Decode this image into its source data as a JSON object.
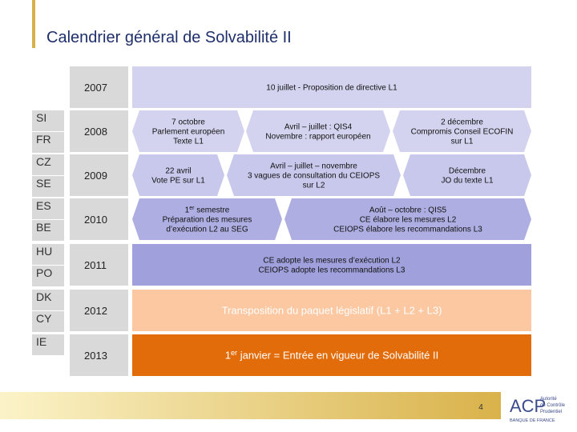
{
  "title": "Calendrier général de Solvabilité II",
  "countries": [
    "SI",
    "FR",
    "CZ",
    "SE",
    "ES",
    "BE",
    "HU",
    "PO",
    "DK",
    "CY",
    "IE"
  ],
  "rows": [
    {
      "year": "2007",
      "events": [
        {
          "lines": [
            {
              "text": "10 juillet  - Proposition de directive L1"
            }
          ]
        }
      ]
    },
    {
      "year": "2008",
      "events": [
        {
          "lines": [
            {
              "text": "7 octobre"
            },
            {
              "text": "Parlement européen"
            },
            {
              "text": "Texte L1"
            }
          ]
        },
        {
          "lines": [
            {
              "text": "Avril – juillet : QIS4"
            },
            {
              "text": "Novembre : rapport européen"
            }
          ]
        },
        {
          "lines": [
            {
              "text": "2 décembre"
            },
            {
              "text": "Compromis Conseil ECOFIN"
            },
            {
              "text": "sur L1"
            }
          ]
        }
      ]
    },
    {
      "year": "2009",
      "events": [
        {
          "lines": [
            {
              "text": "22 avril"
            },
            {
              "text": "Vote PE sur L1"
            }
          ]
        },
        {
          "lines": [
            {
              "text": "Avril – juillet – novembre"
            },
            {
              "text": "3 vagues de consultation du CEIOPS"
            },
            {
              "text": "sur L2"
            }
          ]
        },
        {
          "lines": [
            {
              "text": "Décembre"
            },
            {
              "text": "JO du texte L1"
            }
          ]
        }
      ]
    },
    {
      "year": "2010",
      "events": [
        {
          "lines": [
            {
              "text": "1",
              "sup": "er",
              "rest": " semestre"
            },
            {
              "text": "Préparation des mesures"
            },
            {
              "text": "d’exécution L2 au SEG"
            }
          ]
        },
        {
          "lines": [
            {
              "text": "Août – octobre : QIS5"
            },
            {
              "text": "CE élabore les mesures L2"
            },
            {
              "text": "CEIOPS élabore les recommandations L3"
            }
          ]
        }
      ]
    },
    {
      "year": "2011",
      "events": [
        {
          "lines": [
            {
              "text": "CE adopte les mesures d’exécution L2"
            },
            {
              "text": "CEIOPS adopte les recommandations L3"
            }
          ]
        }
      ]
    },
    {
      "year": "2012",
      "events": [
        {
          "lines": [
            {
              "text": "Transposition du paquet législatif (L1 + L2 + L3)"
            }
          ]
        }
      ]
    },
    {
      "year": "2013",
      "events": [
        {
          "lines": [
            {
              "text": "1",
              "sup": "er",
              "rest": " janvier = Entrée en vigueur de Solvabilité II"
            }
          ]
        }
      ]
    }
  ],
  "page_number": "4",
  "logo": {
    "acronym": "ACP",
    "name_lines": [
      "Autorité",
      "de Contrôle",
      "Prudentiel"
    ],
    "bank": "BANQUE DE FRANCE"
  }
}
